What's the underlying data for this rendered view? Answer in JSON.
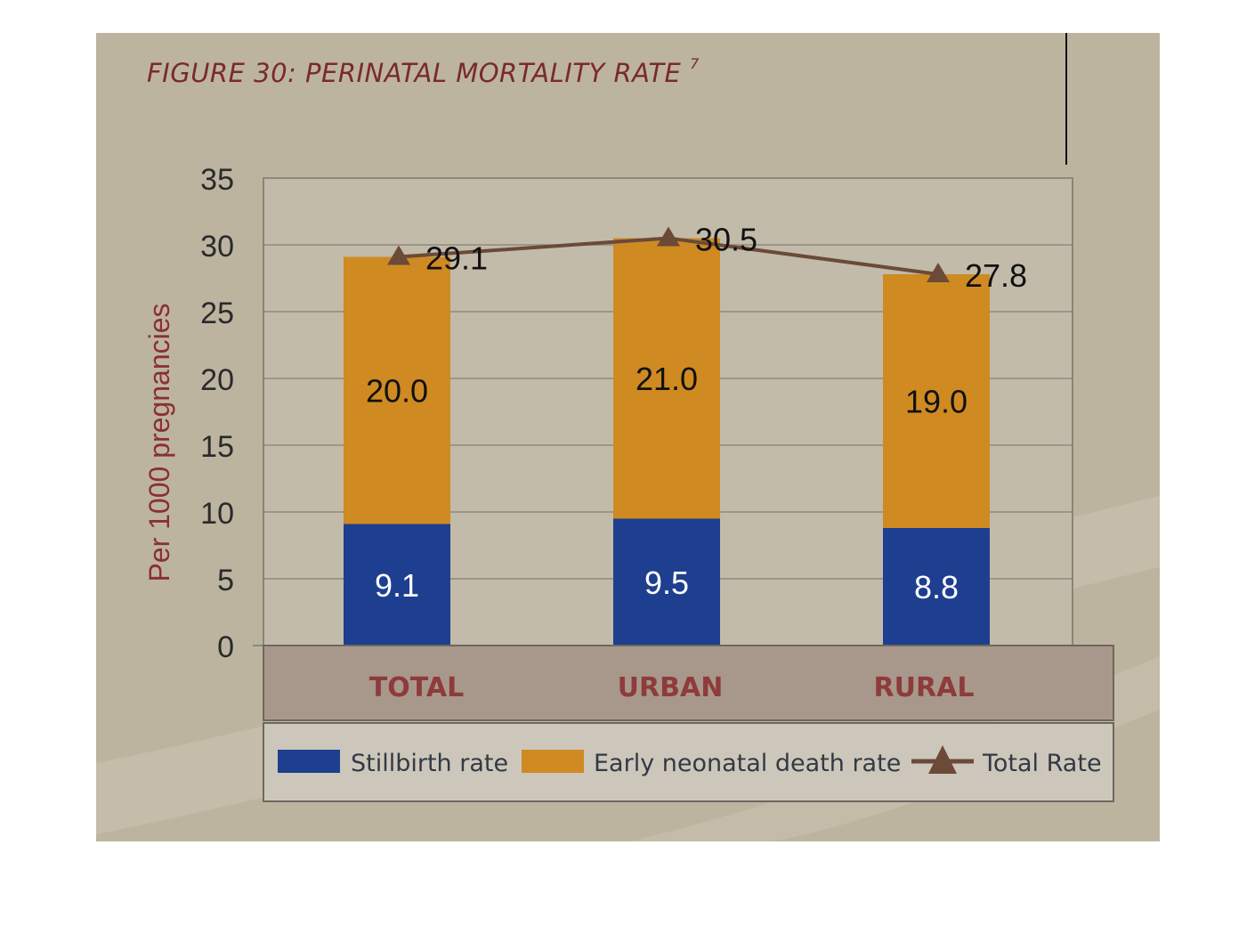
{
  "figure": {
    "title": "FIGURE 30: PERINATAL MORTALITY RATE",
    "title_sup": "7"
  },
  "chart_data": {
    "type": "bar",
    "stacked": true,
    "categories": [
      "TOTAL",
      "URBAN",
      "RURAL"
    ],
    "series": [
      {
        "name": "Stillbirth rate",
        "values": [
          9.1,
          9.5,
          8.8
        ],
        "color": "#1e3f8f",
        "label_color": "#ffffff",
        "labels": [
          "9.1",
          "9.5",
          "8.8"
        ]
      },
      {
        "name": "Early neonatal death rate",
        "values": [
          20.0,
          21.0,
          19.0
        ],
        "color": "#cf8a22",
        "label_color": "#111111",
        "labels": [
          "20.0",
          "21.0",
          "19.0"
        ]
      }
    ],
    "line_series": {
      "name": "Total Rate",
      "values": [
        29.1,
        30.5,
        27.8
      ],
      "color": "#6b4a38",
      "labels": [
        "29.1",
        "30.5",
        "27.8"
      ]
    },
    "ylabel": "Per 1000 pregnancies",
    "ylim": [
      0,
      35
    ],
    "yticks": [
      "0",
      "5",
      "10",
      "15",
      "20",
      "25",
      "30",
      "35"
    ],
    "grid": true,
    "legend_position": "bottom",
    "legend": [
      {
        "label": "Stillbirth rate",
        "kind": "swatch",
        "color": "#1e3f8f"
      },
      {
        "label": "Early neonatal death rate",
        "kind": "swatch",
        "color": "#cf8a22"
      },
      {
        "label": "Total Rate",
        "kind": "line-marker",
        "color": "#6b4a38"
      }
    ]
  }
}
